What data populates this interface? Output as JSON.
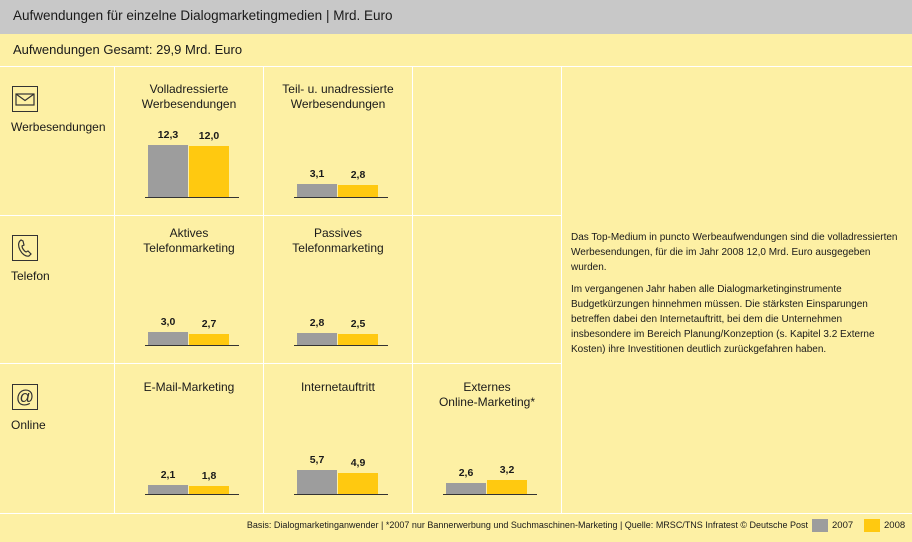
{
  "title": "Aufwendungen für einzelne Dialogmarketingmedien | Mrd. Euro",
  "total": "Aufwendungen Gesamt: 29,9 Mrd. Euro",
  "rows": [
    {
      "label": "Werbesendungen",
      "icon": "envelope-icon"
    },
    {
      "label": "Telefon",
      "icon": "phone-icon"
    },
    {
      "label": "Online",
      "icon": "at-sign-icon"
    }
  ],
  "chart_data": [
    {
      "type": "bar",
      "title": "Volladressierte\nWerbesendungen",
      "categories": [
        "2007",
        "2008"
      ],
      "values": [
        12.3,
        12.0
      ],
      "labels": [
        "12,3",
        "12,0"
      ]
    },
    {
      "type": "bar",
      "title": "Teil- u. unadressierte\nWerbesendungen",
      "categories": [
        "2007",
        "2008"
      ],
      "values": [
        3.1,
        2.8
      ],
      "labels": [
        "3,1",
        "2,8"
      ]
    },
    {
      "type": "bar",
      "title": "Aktives\nTelefonmarketing",
      "categories": [
        "2007",
        "2008"
      ],
      "values": [
        3.0,
        2.7
      ],
      "labels": [
        "3,0",
        "2,7"
      ]
    },
    {
      "type": "bar",
      "title": "Passives\nTelefonmarketing",
      "categories": [
        "2007",
        "2008"
      ],
      "values": [
        2.8,
        2.5
      ],
      "labels": [
        "2,8",
        "2,5"
      ]
    },
    {
      "type": "bar",
      "title": "E-Mail-Marketing",
      "categories": [
        "2007",
        "2008"
      ],
      "values": [
        2.1,
        1.8
      ],
      "labels": [
        "2,1",
        "1,8"
      ]
    },
    {
      "type": "bar",
      "title": "Internetauftritt",
      "categories": [
        "2007",
        "2008"
      ],
      "values": [
        5.7,
        4.9
      ],
      "labels": [
        "5,7",
        "4,9"
      ]
    },
    {
      "type": "bar",
      "title": "Externes\nOnline-Marketing*",
      "categories": [
        "2007",
        "2008"
      ],
      "values": [
        2.6,
        3.2
      ],
      "labels": [
        "2,6",
        "3,2"
      ]
    }
  ],
  "description": [
    "Das Top-Medium in puncto Werbeaufwendungen sind die volladressierten Werbesendungen, für die im Jahr 2008 12,0 Mrd. Euro ausgegeben wurden.",
    "Im vergangenen Jahr haben alle Dialogmarketinginstrumente Budgetkürzungen hinnehmen müssen. Die stärksten Einsparungen betreffen dabei den Internetauftritt, bei dem die Unternehmen insbesondere im Bereich Planung/Konzeption (s. Kapitel 3.2 Externe Kosten) ihre Investitionen deutlich zurückgefahren haben."
  ],
  "footer": "Basis: Dialogmarketinganwender | *2007 nur Bannerwerbung und Suchmaschinen-Marketing | Quelle: MRSC/TNS Infratest © Deutsche Post",
  "legend": [
    {
      "label": "2007",
      "color": "#9d9d9d"
    },
    {
      "label": "2008",
      "color": "#ffc910"
    }
  ]
}
